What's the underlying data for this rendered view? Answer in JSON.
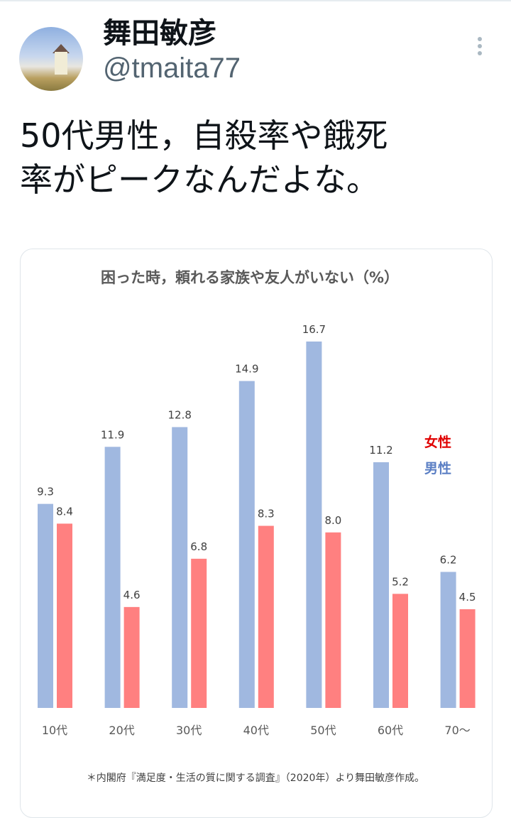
{
  "tweet": {
    "display_name": "舞田敏彦",
    "handle": "@tmaita77",
    "text_line1": "50代男性，自殺率や餓死",
    "text_line2": "率がピークなんだよな。",
    "more_icon": "more-vertical-icon"
  },
  "chart_data": {
    "type": "bar",
    "title": "困った時，頼れる家族や友人がいない（%）",
    "categories": [
      "10代",
      "20代",
      "30代",
      "40代",
      "50代",
      "60代",
      "70〜"
    ],
    "series": [
      {
        "name": "男性",
        "color": "#a0b8e0",
        "label_color": "#5b7fc4",
        "values": [
          9.3,
          11.9,
          12.8,
          14.9,
          16.7,
          11.2,
          6.2
        ]
      },
      {
        "name": "女性",
        "color": "#ff8080",
        "label_color": "#e00000",
        "values": [
          8.4,
          4.6,
          6.8,
          8.3,
          8.0,
          5.2,
          4.5
        ]
      }
    ],
    "ylim": [
      0,
      17
    ],
    "grid": false,
    "legend_placement": "right",
    "note": "＊内閣府『満足度・生活の質に関する調査』（2020年）より舞田敏彦作成。"
  }
}
